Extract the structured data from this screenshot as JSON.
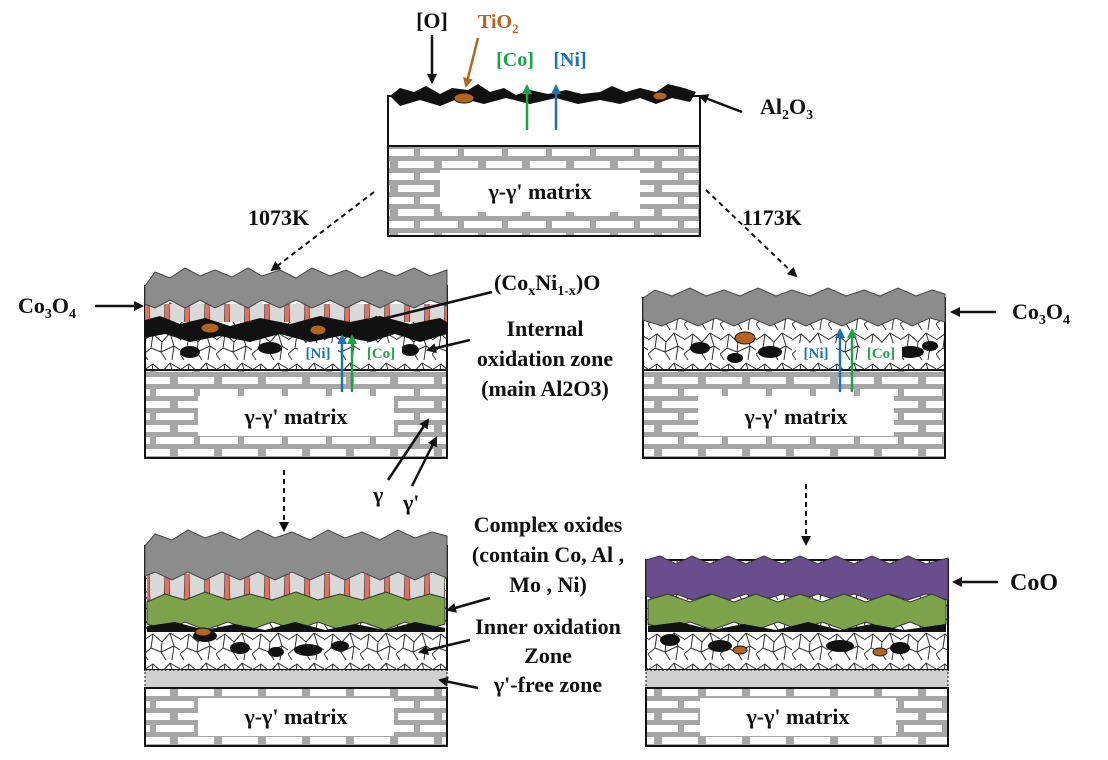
{
  "colors": {
    "gray_oxide": "#8c8c8c",
    "black_oxide": "#111111",
    "tio2": "#b3651f",
    "co_arrow": "#1aa34a",
    "ni_arrow": "#1a73b5",
    "red_needle": "#e07060",
    "green_oxide": "#7da34a",
    "purple_oxide": "#6a4d8c",
    "gamma_prime_free": "#d0d0d0"
  },
  "top": {
    "o_label": "[O]",
    "tio2_base": "TiO",
    "tio2_sub": "2",
    "co_label": "[Co]",
    "ni_label": "[Ni]",
    "al2o3_base": "Al",
    "al2o3_sub1": "2",
    "al2o3_mid": "O",
    "al2o3_sub2": "3",
    "matrix_label": "γ-γ' matrix"
  },
  "temps": {
    "left": "1073K",
    "right": "1173K"
  },
  "mid_left": {
    "co3o4_a": "Co",
    "co3o4_sub1": "3",
    "co3o4_b": "O",
    "co3o4_sub2": "4",
    "coni_open": "(Co",
    "coni_x": "x",
    "coni_ni": "Ni",
    "coni_1x": "1-x",
    "coni_close": ")O",
    "internal_line1": "Internal",
    "internal_line2": "oxidation zone",
    "internal_line3": "(main Al2O3)",
    "ni_tag": "[Ni]",
    "co_tag": "[Co]",
    "matrix_label": "γ-γ' matrix",
    "gamma": "γ",
    "gamma_prime": "γ'"
  },
  "mid_right": {
    "co3o4_a": "Co",
    "co3o4_sub1": "3",
    "co3o4_b": "O",
    "co3o4_sub2": "4",
    "ni_tag": "[Ni]",
    "co_tag": "[Co]",
    "matrix_label": "γ-γ' matrix"
  },
  "bottom_left": {
    "complex_line1": "Complex oxides",
    "complex_line2": "(contain Co, Al ,",
    "complex_line3": "Mo , Ni)",
    "inner_line1": "Inner oxidation",
    "inner_line2": "Zone",
    "gpfree": "γ'-free zone",
    "matrix_label": "γ-γ' matrix"
  },
  "bottom_right": {
    "coo_label": "CoO",
    "matrix_label": "γ-γ' matrix"
  }
}
